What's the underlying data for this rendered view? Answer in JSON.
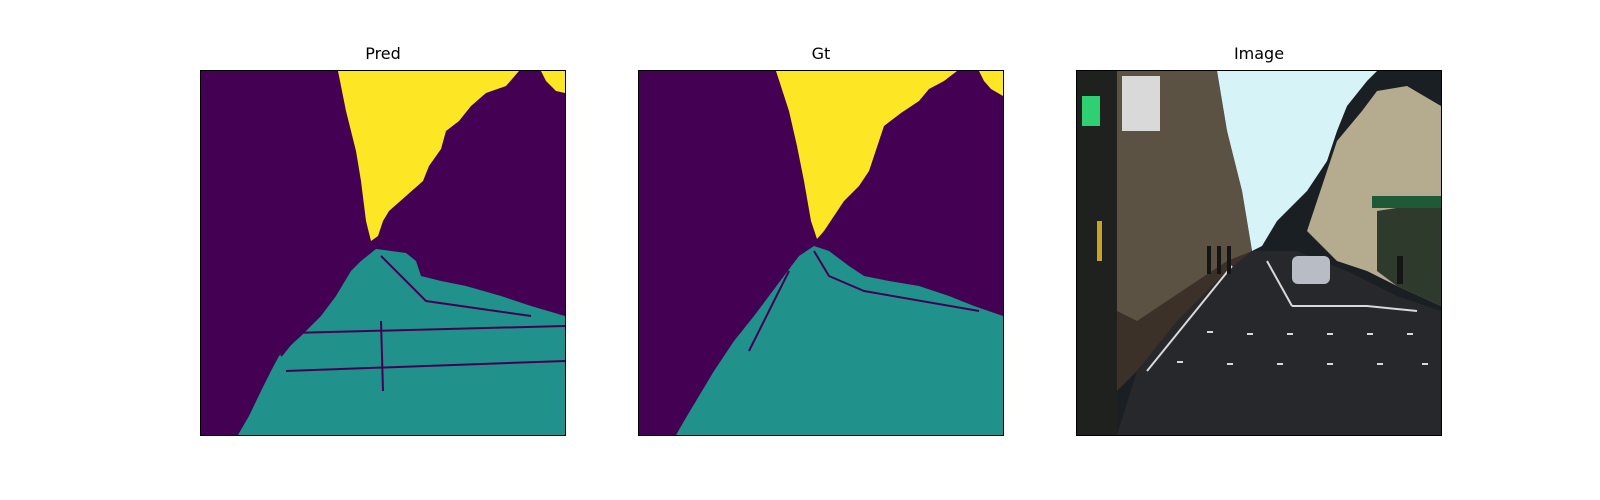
{
  "figure": {
    "panels": [
      {
        "title": "Pred"
      },
      {
        "title": "Gt"
      },
      {
        "title": "Image"
      }
    ]
  },
  "legend_colors": {
    "background": "#440154",
    "road": "#21918c",
    "sky": "#fde725"
  }
}
